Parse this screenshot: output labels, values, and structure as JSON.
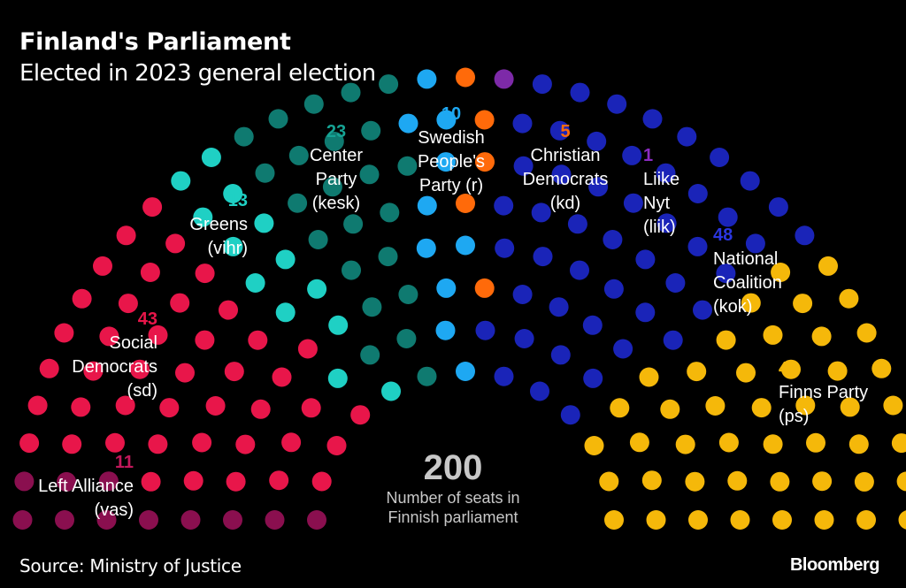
{
  "header": {
    "title": "Finland's Parliament",
    "subtitle": "Elected in 2023 general election"
  },
  "footer": {
    "source": "Source: Ministry of Justice",
    "brand": "Bloomberg"
  },
  "chart_data": {
    "type": "parliament",
    "title": "Finland's Parliament",
    "subtitle": "Elected in 2023 general election",
    "total_seats": 200,
    "total_label": "200",
    "total_caption": "Number of seats in\nFinnish parliament",
    "parties": [
      {
        "id": "vas",
        "name": "Left Alliance\n(vas)",
        "seats": 11,
        "color": "#8a0f4f"
      },
      {
        "id": "sd",
        "name": "Social\nDemocrats\n(sd)",
        "seats": 43,
        "color": "#e8164a"
      },
      {
        "id": "vihr",
        "name": "Greens\n(vihr)",
        "seats": 13,
        "color": "#1fd0c4"
      },
      {
        "id": "kesk",
        "name": "Center\nParty\n(kesk)",
        "seats": 23,
        "color": "#0f7a70"
      },
      {
        "id": "r",
        "name": "Swedish\nPeople's\nParty (r)",
        "seats": 10,
        "color": "#1ea8f2"
      },
      {
        "id": "kd",
        "name": "Christian\nDemocrats\n(kd)",
        "seats": 5,
        "color": "#ff6a0a"
      },
      {
        "id": "liik",
        "name": "Liike\nNyt\n(liik)",
        "seats": 1,
        "color": "#7d2aa8"
      },
      {
        "id": "kok",
        "name": "National\nCoalition\n(kok)",
        "seats": 48,
        "color": "#1a24b8"
      },
      {
        "id": "ps",
        "name": "Finns Party\n(ps)",
        "seats": 46,
        "color": "#f5b80a"
      }
    ],
    "seat_label_colors": {
      "vas": "#c2185b",
      "sd": "#e8164a",
      "vihr": "#1fd0c4",
      "kesk": "#16a394",
      "r": "#1ea8f2",
      "kd": "#ff6a0a",
      "liik": "#8a2bc2",
      "kok": "#2a36e0",
      "ps": "#f5b80a"
    }
  }
}
